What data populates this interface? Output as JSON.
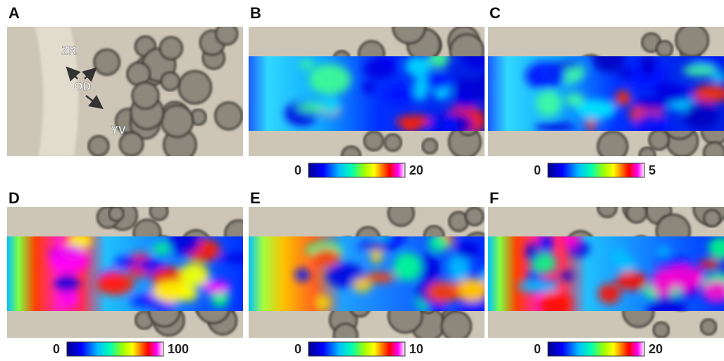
{
  "panels": [
    {
      "label": "A",
      "annotations": [
        "ZR",
        "OD",
        "YV"
      ]
    },
    {
      "label": "B",
      "colorbar": {
        "min": 0,
        "max": 20
      }
    },
    {
      "label": "C",
      "colorbar": {
        "min": 0,
        "max": 5
      }
    },
    {
      "label": "D",
      "colorbar": {
        "min": 0,
        "max": 100
      }
    },
    {
      "label": "E",
      "colorbar": {
        "min": 0,
        "max": 10
      }
    },
    {
      "label": "F",
      "colorbar": {
        "min": 0,
        "max": 20
      }
    }
  ]
}
